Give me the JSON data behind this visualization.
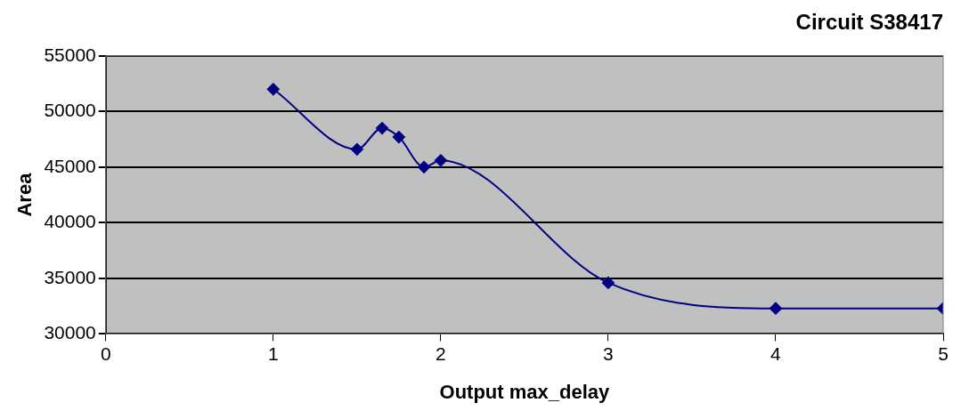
{
  "chart_data": {
    "type": "line",
    "title": "Circuit S38417",
    "xlabel": "Output max_delay",
    "ylabel": "Area",
    "x": [
      1,
      1.5,
      1.65,
      1.75,
      1.9,
      2,
      3,
      4,
      5
    ],
    "series": [
      {
        "color": "#000080",
        "values": [
          52000,
          46600,
          48500,
          47700,
          45000,
          45600,
          34600,
          32300,
          32300
        ]
      }
    ],
    "xlim": [
      0,
      5
    ],
    "xticks": [
      0,
      1,
      2,
      3,
      4,
      5
    ],
    "ylim": [
      30000,
      55000
    ],
    "yticks": [
      30000,
      35000,
      40000,
      45000,
      50000,
      55000
    ],
    "grid": "y",
    "legend": false,
    "marker": "diamond",
    "line_style": "solid"
  }
}
